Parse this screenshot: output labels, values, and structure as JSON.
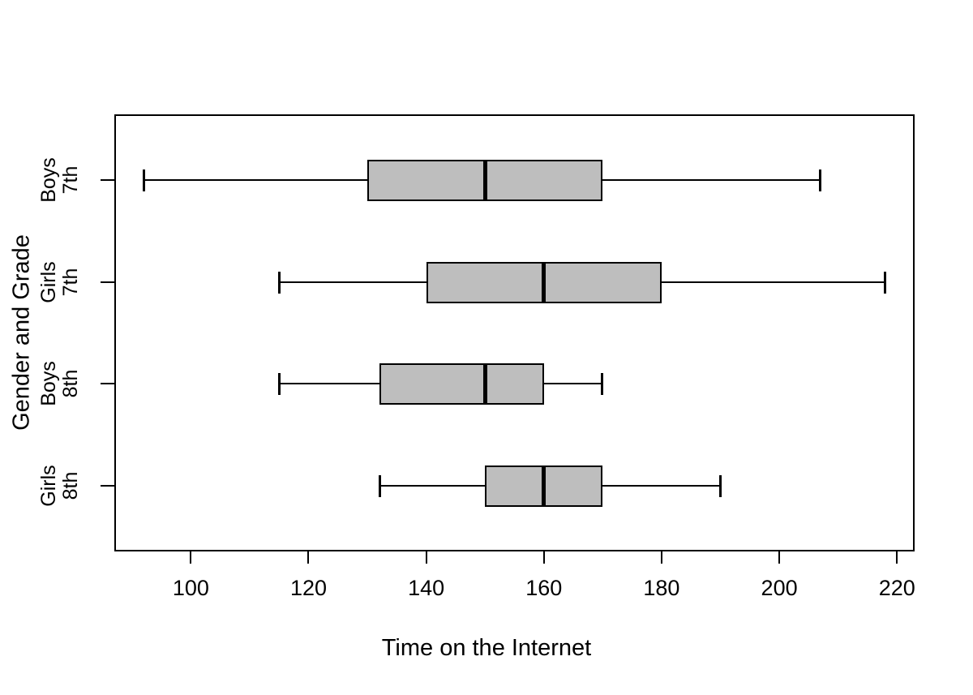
{
  "chart_data": {
    "type": "boxplot",
    "orientation": "horizontal",
    "title": "",
    "xlabel": "Time on the Internet",
    "ylabel": "Gender and Grade",
    "xlim": [
      87,
      223
    ],
    "x_ticks": [
      100,
      120,
      140,
      160,
      180,
      200,
      220
    ],
    "grid": "off",
    "box_fill_color": "#bebebe",
    "stroke_color": "#000000",
    "groups": [
      {
        "label_line1": "Boys",
        "label_line2": "7th",
        "min": 92,
        "q1": 130,
        "median": 150,
        "q3": 170,
        "max": 207
      },
      {
        "label_line1": "Girls",
        "label_line2": "7th",
        "min": 115,
        "q1": 140,
        "median": 160,
        "q3": 180,
        "max": 218
      },
      {
        "label_line1": "Boys",
        "label_line2": "8th",
        "min": 115,
        "q1": 132,
        "median": 150,
        "q3": 160,
        "max": 170
      },
      {
        "label_line1": "Girls",
        "label_line2": "8th",
        "min": 132,
        "q1": 150,
        "median": 160,
        "q3": 170,
        "max": 190
      }
    ]
  }
}
